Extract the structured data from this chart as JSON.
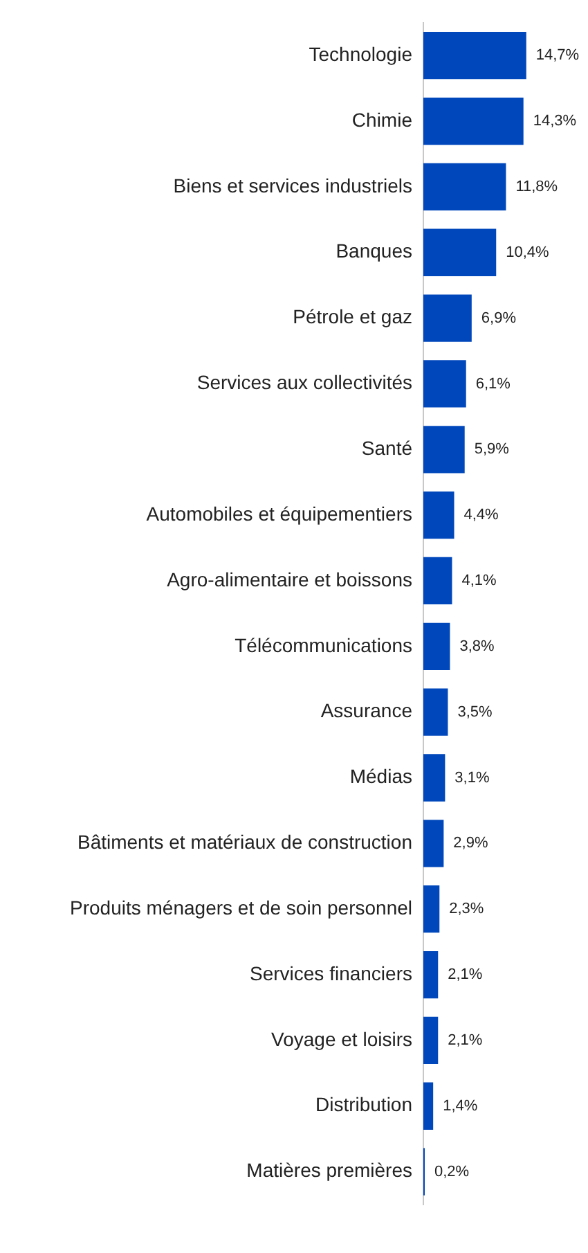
{
  "chart_data": {
    "type": "bar",
    "orientation": "horizontal",
    "categories": [
      "Technologie",
      "Chimie",
      "Biens et services industriels",
      "Banques",
      "Pétrole et gaz",
      "Services aux collectivités",
      "Santé",
      "Automobiles et équipementiers",
      "Agro-alimentaire et boissons",
      "Télécommunications",
      "Assurance",
      "Médias",
      "Bâtiments et matériaux de construction",
      "Produits ménagers et de soin personnel",
      "Services financiers",
      "Voyage et loisirs",
      "Distribution",
      "Matières premières"
    ],
    "values": [
      14.7,
      14.3,
      11.8,
      10.4,
      6.9,
      6.1,
      5.9,
      4.4,
      4.1,
      3.8,
      3.5,
      3.1,
      2.9,
      2.3,
      2.1,
      2.1,
      1.4,
      0.2
    ],
    "value_labels": [
      "14,7%",
      "14,3%",
      "11,8%",
      "10,4%",
      "6,9%",
      "6,1%",
      "5,9%",
      "4,4%",
      "4,1%",
      "3,8%",
      "3,5%",
      "3,1%",
      "2,9%",
      "2,3%",
      "2,1%",
      "2,1%",
      "1,4%",
      "0,2%"
    ],
    "color": "#0047bb",
    "legend": false,
    "tick_labels": "y"
  }
}
